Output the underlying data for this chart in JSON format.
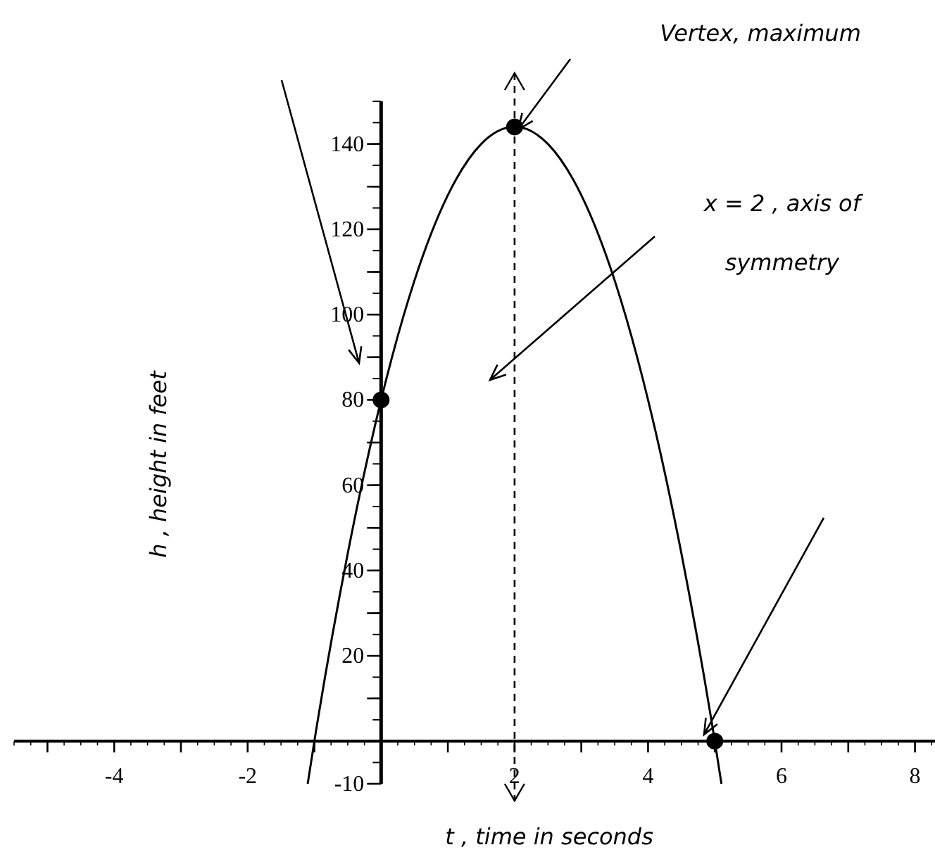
{
  "chart_data": {
    "type": "line",
    "xlabel": "t , time in seconds",
    "ylabel": "h , height in feet",
    "series": [
      {
        "color": "#000000",
        "x": [
          -1.1,
          -1,
          -0.5,
          0,
          0.5,
          1,
          1.5,
          2,
          2.5,
          3,
          3.5,
          4,
          4.5,
          5,
          5.1
        ],
        "values": [
          -10,
          0,
          44,
          80,
          108,
          128,
          140,
          144,
          140,
          128,
          108,
          80,
          44,
          0,
          -10
        ]
      },
      {
        "type": "scatter",
        "color": "#000000",
        "x": [
          0,
          2,
          5
        ],
        "values": [
          80,
          144,
          0
        ]
      }
    ],
    "annotations": [
      "Vertex, maximum"
    ],
    "ref_lines": [
      {
        "axis": "x",
        "value": 2,
        "label": "x = 2 , axis of symmetry",
        "line_style": "dashed",
        "color": "#000000"
      }
    ],
    "xlim": [
      -5.5,
      8.3
    ],
    "ylim": [
      -10,
      150
    ],
    "xticks": [
      {
        "value": -5,
        "label": null
      },
      -4,
      {
        "value": -3,
        "label": null
      },
      -2,
      {
        "value": -1,
        "label": null
      },
      {
        "value": 1,
        "label": null
      },
      2,
      {
        "value": 3,
        "label": null
      },
      4,
      {
        "value": 5,
        "label": null
      },
      6,
      {
        "value": 7,
        "label": null
      },
      8
    ],
    "yticks": [
      -10,
      {
        "value": 10,
        "label": null
      },
      20,
      {
        "value": 30,
        "label": null
      },
      40,
      {
        "value": 50,
        "label": null
      },
      60,
      {
        "value": 70,
        "label": null
      },
      80,
      {
        "value": 90,
        "label": null
      },
      100,
      {
        "value": 110,
        "label": null
      },
      120,
      {
        "value": 130,
        "label": null
      },
      140
    ],
    "grid": false,
    "line_style": "solid"
  }
}
